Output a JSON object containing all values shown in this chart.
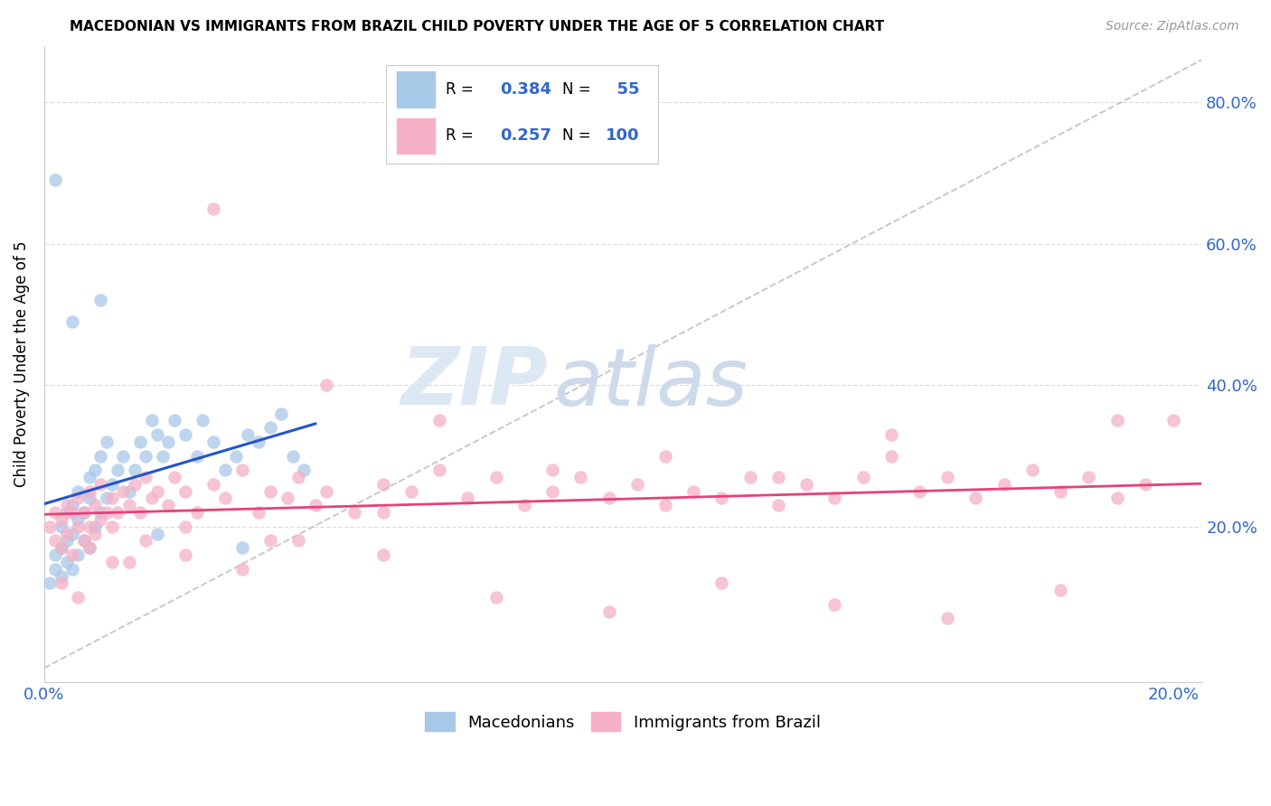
{
  "title": "MACEDONIAN VS IMMIGRANTS FROM BRAZIL CHILD POVERTY UNDER THE AGE OF 5 CORRELATION CHART",
  "source": "Source: ZipAtlas.com",
  "ylabel": "Child Poverty Under the Age of 5",
  "xlim": [
    0.0,
    0.205
  ],
  "ylim": [
    -0.02,
    0.88
  ],
  "macedonian_color": "#a8c8e8",
  "brazil_color": "#f5b0c5",
  "macedonian_line_color": "#2255cc",
  "brazil_line_color": "#e8407a",
  "diagonal_color": "#c8c8c8",
  "grid_color": "#dddddd",
  "R_macedonian": 0.384,
  "N_macedonian": 55,
  "R_brazil": 0.257,
  "N_brazil": 100,
  "watermark_ZIP": "ZIP",
  "watermark_atlas": "atlas",
  "mac_x": [
    0.001,
    0.002,
    0.002,
    0.003,
    0.003,
    0.003,
    0.004,
    0.004,
    0.004,
    0.005,
    0.005,
    0.005,
    0.006,
    0.006,
    0.006,
    0.007,
    0.007,
    0.008,
    0.008,
    0.008,
    0.009,
    0.009,
    0.01,
    0.01,
    0.011,
    0.011,
    0.012,
    0.013,
    0.014,
    0.015,
    0.016,
    0.017,
    0.018,
    0.019,
    0.02,
    0.021,
    0.022,
    0.023,
    0.025,
    0.027,
    0.028,
    0.03,
    0.032,
    0.034,
    0.036,
    0.038,
    0.04,
    0.042,
    0.044,
    0.046,
    0.002,
    0.005,
    0.01,
    0.02,
    0.035
  ],
  "mac_y": [
    0.12,
    0.14,
    0.16,
    0.13,
    0.17,
    0.2,
    0.15,
    0.18,
    0.22,
    0.14,
    0.19,
    0.23,
    0.16,
    0.21,
    0.25,
    0.18,
    0.22,
    0.17,
    0.24,
    0.27,
    0.2,
    0.28,
    0.22,
    0.3,
    0.24,
    0.32,
    0.26,
    0.28,
    0.3,
    0.25,
    0.28,
    0.32,
    0.3,
    0.35,
    0.33,
    0.3,
    0.32,
    0.35,
    0.33,
    0.3,
    0.35,
    0.32,
    0.28,
    0.3,
    0.33,
    0.32,
    0.34,
    0.36,
    0.3,
    0.28,
    0.69,
    0.49,
    0.52,
    0.19,
    0.17
  ],
  "bra_x": [
    0.001,
    0.002,
    0.002,
    0.003,
    0.003,
    0.004,
    0.004,
    0.005,
    0.005,
    0.006,
    0.006,
    0.007,
    0.007,
    0.008,
    0.008,
    0.009,
    0.009,
    0.01,
    0.01,
    0.011,
    0.012,
    0.012,
    0.013,
    0.014,
    0.015,
    0.016,
    0.017,
    0.018,
    0.019,
    0.02,
    0.022,
    0.023,
    0.025,
    0.027,
    0.03,
    0.032,
    0.035,
    0.038,
    0.04,
    0.043,
    0.045,
    0.048,
    0.05,
    0.055,
    0.06,
    0.065,
    0.07,
    0.075,
    0.08,
    0.085,
    0.09,
    0.095,
    0.1,
    0.105,
    0.11,
    0.115,
    0.12,
    0.125,
    0.13,
    0.135,
    0.14,
    0.145,
    0.15,
    0.155,
    0.16,
    0.165,
    0.17,
    0.175,
    0.18,
    0.185,
    0.19,
    0.195,
    0.2,
    0.03,
    0.05,
    0.07,
    0.09,
    0.11,
    0.13,
    0.15,
    0.008,
    0.012,
    0.018,
    0.025,
    0.035,
    0.045,
    0.06,
    0.08,
    0.1,
    0.12,
    0.14,
    0.16,
    0.18,
    0.003,
    0.006,
    0.015,
    0.025,
    0.04,
    0.06,
    0.19
  ],
  "bra_y": [
    0.2,
    0.22,
    0.18,
    0.21,
    0.17,
    0.23,
    0.19,
    0.22,
    0.16,
    0.2,
    0.24,
    0.18,
    0.22,
    0.2,
    0.25,
    0.19,
    0.23,
    0.21,
    0.26,
    0.22,
    0.24,
    0.2,
    0.22,
    0.25,
    0.23,
    0.26,
    0.22,
    0.27,
    0.24,
    0.25,
    0.23,
    0.27,
    0.25,
    0.22,
    0.26,
    0.24,
    0.28,
    0.22,
    0.25,
    0.24,
    0.27,
    0.23,
    0.25,
    0.22,
    0.26,
    0.25,
    0.28,
    0.24,
    0.27,
    0.23,
    0.25,
    0.27,
    0.24,
    0.26,
    0.23,
    0.25,
    0.24,
    0.27,
    0.23,
    0.26,
    0.24,
    0.27,
    0.3,
    0.25,
    0.27,
    0.24,
    0.26,
    0.28,
    0.25,
    0.27,
    0.24,
    0.26,
    0.35,
    0.65,
    0.4,
    0.35,
    0.28,
    0.3,
    0.27,
    0.33,
    0.17,
    0.15,
    0.18,
    0.16,
    0.14,
    0.18,
    0.16,
    0.1,
    0.08,
    0.12,
    0.09,
    0.07,
    0.11,
    0.12,
    0.1,
    0.15,
    0.2,
    0.18,
    0.22,
    0.35
  ]
}
